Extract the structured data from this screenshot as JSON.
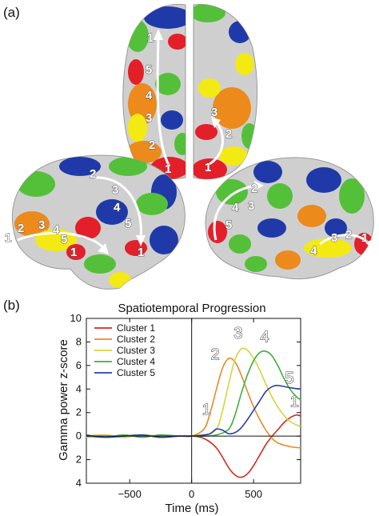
{
  "panels": {
    "a_label": "(a)",
    "b_label": "(b)"
  },
  "brain": {
    "region_colors": {
      "red": "#e3202a",
      "orange": "#ec8a1c",
      "yellow": "#f4ea13",
      "green": "#54c03a",
      "blue": "#1f3aa8",
      "gray": "#cfcfcf"
    },
    "top_view_left_labels": [
      "1",
      "5",
      "4",
      "3",
      "2",
      "1"
    ],
    "top_view_right_labels": [
      "3",
      "2",
      "1"
    ],
    "left_lateral_upper_labels": [
      "2",
      "3",
      "4",
      "5",
      "1"
    ],
    "left_lateral_lower_labels": [
      "1",
      "2",
      "3",
      "4",
      "5",
      "1"
    ],
    "right_lateral_upper_labels": [
      "2",
      "3",
      "4",
      "5"
    ],
    "right_lateral_lower_labels": [
      "4",
      "3",
      "2",
      "1"
    ]
  },
  "chart_data": {
    "type": "line",
    "title": "Spatiotemporal Progression",
    "xlabel": "Time (ms)",
    "ylabel": "Gamma power z-score",
    "xlim": [
      -850,
      880
    ],
    "ylim": [
      -4,
      10
    ],
    "x_ticks": [
      -500,
      0,
      500
    ],
    "x_tick_labels": [
      "−500",
      "0",
      "500"
    ],
    "y_ticks": [
      -4,
      -2,
      0,
      2,
      4,
      6,
      8,
      10
    ],
    "y_tick_labels": [
      "4",
      "2",
      "0",
      "2",
      "4",
      "6",
      "8",
      "10"
    ],
    "legend_position": "top-left",
    "series": [
      {
        "name": "Cluster 1",
        "color": "#d62a1e",
        "x": [
          -850,
          -700,
          -550,
          -400,
          -250,
          -100,
          0,
          100,
          200,
          300,
          350,
          400,
          450,
          500,
          550,
          600,
          650,
          700,
          750,
          800,
          850,
          880
        ],
        "y": [
          -0.1,
          0.1,
          -0.1,
          0.1,
          -0.1,
          0.0,
          0.0,
          -0.2,
          -1.0,
          -2.7,
          -3.3,
          -3.5,
          -3.2,
          -2.5,
          -1.6,
          -0.7,
          0.0,
          0.6,
          1.2,
          1.6,
          1.8,
          1.7
        ]
      },
      {
        "name": "Cluster 2",
        "color": "#e88a2a",
        "x": [
          -850,
          -700,
          -550,
          -400,
          -250,
          -100,
          0,
          100,
          150,
          200,
          250,
          300,
          350,
          400,
          450,
          500,
          550,
          600,
          650,
          700,
          800,
          880
        ],
        "y": [
          0.0,
          0.1,
          -0.1,
          0.1,
          -0.1,
          0.0,
          0.0,
          0.6,
          2.0,
          4.0,
          5.8,
          6.6,
          6.3,
          5.2,
          3.8,
          2.5,
          1.4,
          0.5,
          -0.2,
          -0.6,
          -0.9,
          -1.0
        ]
      },
      {
        "name": "Cluster 3",
        "color": "#d8d23a",
        "x": [
          -850,
          -700,
          -550,
          -400,
          -250,
          -100,
          0,
          100,
          200,
          250,
          300,
          350,
          400,
          450,
          500,
          550,
          600,
          650,
          700,
          750,
          800,
          880
        ],
        "y": [
          -0.1,
          0.1,
          -0.1,
          0.1,
          0.0,
          0.0,
          0.0,
          0.1,
          0.6,
          2.2,
          4.5,
          6.5,
          7.4,
          7.3,
          6.6,
          5.6,
          4.4,
          3.3,
          2.4,
          1.7,
          1.2,
          0.8
        ]
      },
      {
        "name": "Cluster 4",
        "color": "#3fae3f",
        "x": [
          -850,
          -700,
          -550,
          -400,
          -250,
          -100,
          0,
          100,
          200,
          300,
          350,
          400,
          450,
          500,
          550,
          600,
          650,
          700,
          750,
          800,
          850,
          880
        ],
        "y": [
          0.0,
          -0.1,
          0.1,
          -0.1,
          0.1,
          0.0,
          0.0,
          0.0,
          0.1,
          0.6,
          1.8,
          3.6,
          5.2,
          6.4,
          7.1,
          7.2,
          6.8,
          5.9,
          4.8,
          3.9,
          3.3,
          3.1
        ]
      },
      {
        "name": "Cluster 5",
        "color": "#2b3fa8",
        "x": [
          -850,
          -700,
          -550,
          -400,
          -250,
          -100,
          0,
          100,
          150,
          200,
          250,
          300,
          350,
          400,
          450,
          500,
          550,
          600,
          650,
          700,
          800,
          880
        ],
        "y": [
          0.1,
          -0.1,
          0.0,
          0.1,
          -0.1,
          0.0,
          0.0,
          0.1,
          0.2,
          0.6,
          0.5,
          0.2,
          0.3,
          0.7,
          1.4,
          2.2,
          3.0,
          3.8,
          4.2,
          4.3,
          4.1,
          4.0
        ]
      }
    ],
    "peak_labels": [
      {
        "text": "1",
        "x": 120,
        "y": 1.8
      },
      {
        "text": "2",
        "x": 190,
        "y": 6.5
      },
      {
        "text": "3",
        "x": 375,
        "y": 8.3
      },
      {
        "text": "4",
        "x": 590,
        "y": 8.0
      },
      {
        "text": "5",
        "x": 790,
        "y": 4.5
      },
      {
        "text": "1",
        "x": 830,
        "y": 2.5
      }
    ]
  }
}
